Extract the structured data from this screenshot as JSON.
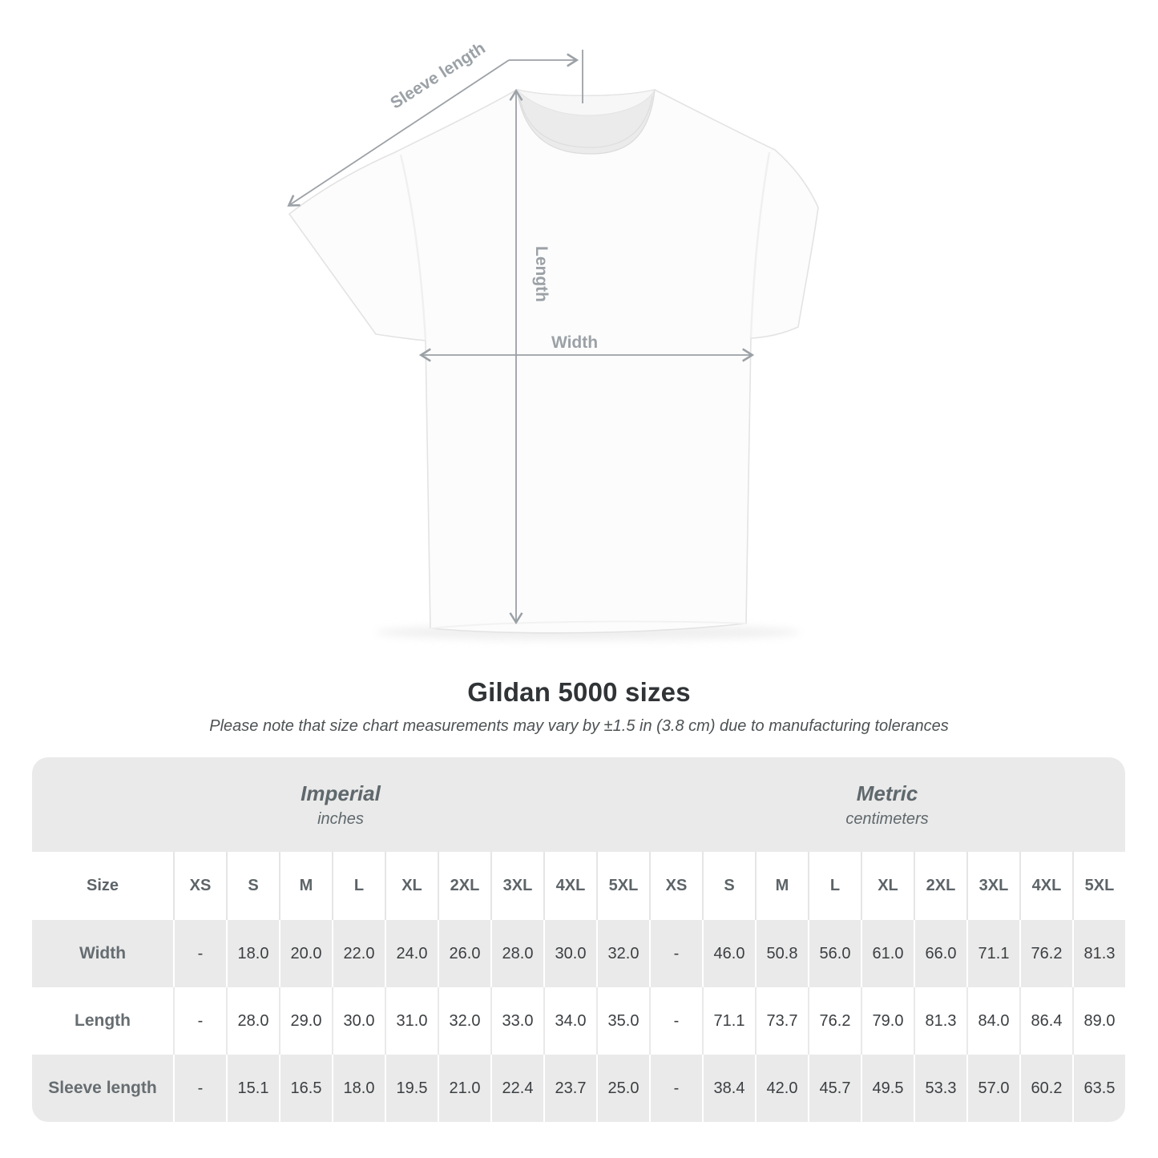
{
  "diagram": {
    "sleeve_length_label": "Sleeve length",
    "length_label": "Length",
    "width_label": "Width"
  },
  "heading": {
    "title": "Gildan 5000 sizes",
    "note": "Please note that size chart measurements may vary by ±1.5 in (3.8 cm) due to manufacturing tolerances"
  },
  "chart_data": {
    "type": "table",
    "title": "Gildan 5000 sizes",
    "note": "Please note that size chart measurements may vary by ±1.5 in (3.8 cm) due to manufacturing tolerances",
    "size_col_header": "Size",
    "sizes": [
      "XS",
      "S",
      "M",
      "L",
      "XL",
      "2XL",
      "3XL",
      "4XL",
      "5XL"
    ],
    "unit_groups": [
      {
        "label": "Imperial",
        "unit": "inches"
      },
      {
        "label": "Metric",
        "unit": "centimeters"
      }
    ],
    "rows": [
      {
        "label": "Width",
        "imperial": [
          "-",
          "18.0",
          "20.0",
          "22.0",
          "24.0",
          "26.0",
          "28.0",
          "30.0",
          "32.0"
        ],
        "metric": [
          "-",
          "46.0",
          "50.8",
          "56.0",
          "61.0",
          "66.0",
          "71.1",
          "76.2",
          "81.3"
        ]
      },
      {
        "label": "Length",
        "imperial": [
          "-",
          "28.0",
          "29.0",
          "30.0",
          "31.0",
          "32.0",
          "33.0",
          "34.0",
          "35.0"
        ],
        "metric": [
          "-",
          "71.1",
          "73.7",
          "76.2",
          "79.0",
          "81.3",
          "84.0",
          "86.4",
          "89.0"
        ]
      },
      {
        "label": "Sleeve length",
        "imperial": [
          "-",
          "15.1",
          "16.5",
          "18.0",
          "19.5",
          "21.0",
          "22.4",
          "23.7",
          "25.0"
        ],
        "metric": [
          "-",
          "38.4",
          "42.0",
          "45.7",
          "49.5",
          "53.3",
          "57.0",
          "60.2",
          "63.5"
        ]
      }
    ]
  },
  "colors": {
    "table_band_gray": "#eaeaea",
    "annotation_gray": "#9ba1a6",
    "value_text": "#3b3f42",
    "label_text": "#666d71"
  }
}
